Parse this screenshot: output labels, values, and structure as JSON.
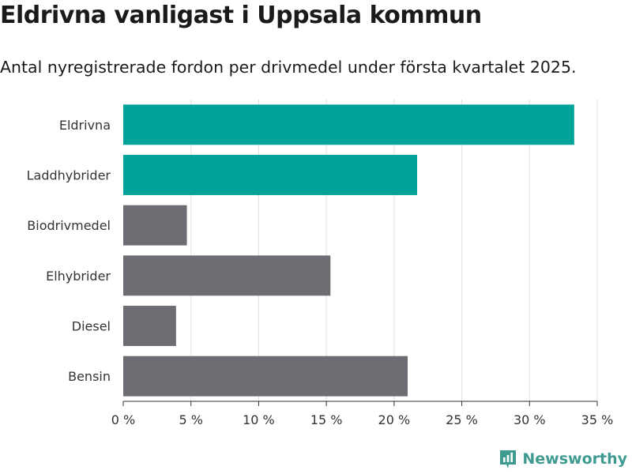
{
  "title": "Eldrivna vanligast i Uppsala kommun",
  "subtitle": "Antal nyregistrerade fordon per drivmedel under första kvartalet 2025.",
  "brand": "Newsworthy",
  "colors": {
    "highlight": "#00a39a",
    "other": "#6e6d73",
    "grid": "#e0e0e0",
    "axis": "#333333"
  },
  "chart_data": {
    "type": "bar",
    "orientation": "horizontal",
    "categories": [
      "Eldrivna",
      "Laddhybrider",
      "Biodrivmedel",
      "Elhybrider",
      "Diesel",
      "Bensin"
    ],
    "values": [
      33.3,
      21.7,
      4.7,
      15.3,
      3.9,
      21.0
    ],
    "highlighted": [
      true,
      true,
      false,
      false,
      false,
      false
    ],
    "xlim": [
      0,
      35
    ],
    "xticks": [
      0,
      5,
      10,
      15,
      20,
      25,
      30,
      35
    ],
    "xtick_labels": [
      "0 %",
      "5 %",
      "10 %",
      "15 %",
      "20 %",
      "25 %",
      "30 %",
      "35 %"
    ],
    "grid": true,
    "xlabel": "",
    "ylabel": ""
  }
}
